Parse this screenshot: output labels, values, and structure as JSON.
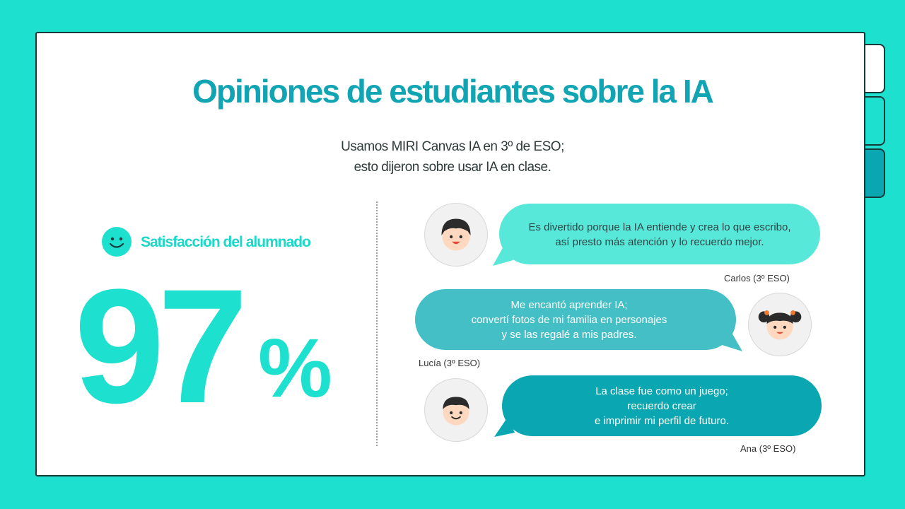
{
  "title": "Opiniones de estudiantes sobre la IA",
  "subtitle": {
    "line1": "Usamos MIRI Canvas IA en 3º de ESO;",
    "line2": "esto dijeron sobre usar IA en clase."
  },
  "satisfaction": {
    "label": "Satisfacción del alumnado",
    "value": "97",
    "unit": "%",
    "icon": "smiley-icon"
  },
  "colors": {
    "background": "#1de0cf",
    "title": "#11a4b3",
    "bubble1": "#57e8da",
    "bubble2": "#44bfc6",
    "bubble3": "#0aa7b3"
  },
  "testimonials": [
    {
      "lines": [
        "Es divertido porque la IA entiende y crea lo que escribo,",
        "así presto más atención y lo recuerdo mejor."
      ],
      "author": "Carlos (3º ESO)"
    },
    {
      "lines": [
        "Me encantó aprender IA;",
        "convertí fotos de mi familia en personajes",
        "y se las regalé a mis padres."
      ],
      "author": "Lucía (3º ESO)"
    },
    {
      "lines": [
        "La clase fue como un juego;",
        "recuerdo crear",
        "e imprimir mi perfil de futuro."
      ],
      "author": "Ana (3º ESO)"
    }
  ]
}
